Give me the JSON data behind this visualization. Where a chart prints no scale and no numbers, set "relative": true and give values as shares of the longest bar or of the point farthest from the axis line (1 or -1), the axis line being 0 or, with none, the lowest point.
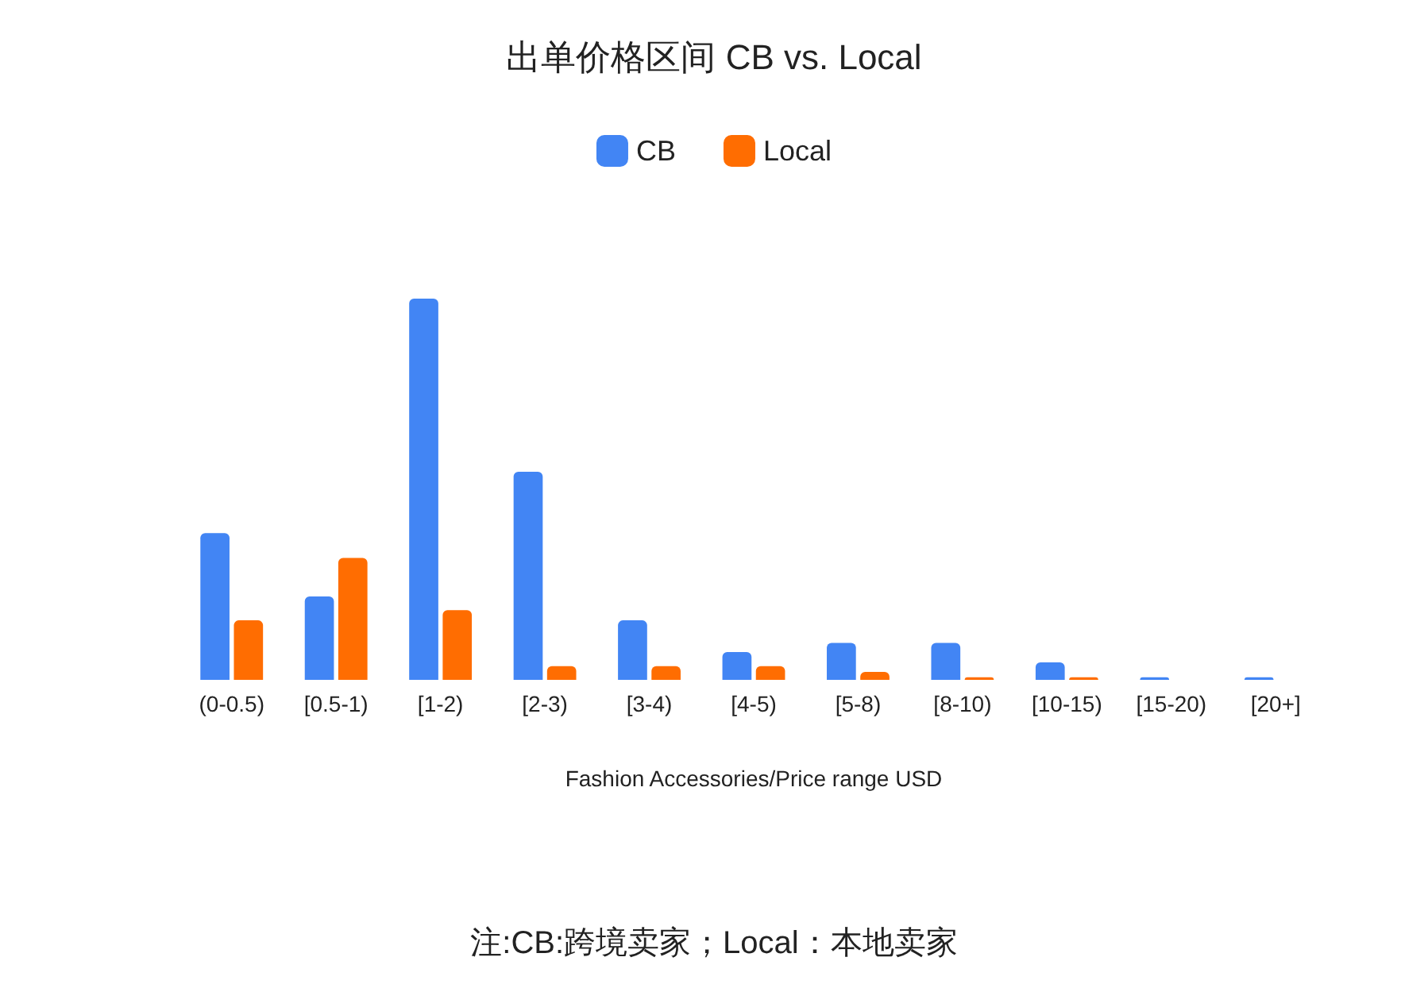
{
  "chart_data": {
    "type": "bar",
    "title": "出单价格区间 CB vs. Local",
    "xlabel": "Fashion Accessories/Price range USD",
    "annotations": [
      "注:CB:跨境卖家；Local：本地卖家"
    ],
    "categories": [
      "(0-0.5)",
      "[0.5-1)",
      "[1-2)",
      "[2-3)",
      "[3-4)",
      "[4-5)",
      "[5-8)",
      "[8-10)",
      "[10-15)",
      "[15-20)",
      "[20+]"
    ],
    "relative": true,
    "legend": "top",
    "series": [
      {
        "name": "CB",
        "color": "#4285f4",
        "values": [
          0.385,
          0.219,
          1,
          0.546,
          0.156,
          0.073,
          0.097,
          0.097,
          0.046,
          0.007,
          0.007
        ]
      },
      {
        "name": "Local",
        "color": "#ff6d01",
        "values": [
          0.156,
          0.32,
          0.183,
          0.036,
          0.036,
          0.036,
          0.021,
          0.007,
          0.007,
          0,
          0
        ]
      }
    ]
  }
}
